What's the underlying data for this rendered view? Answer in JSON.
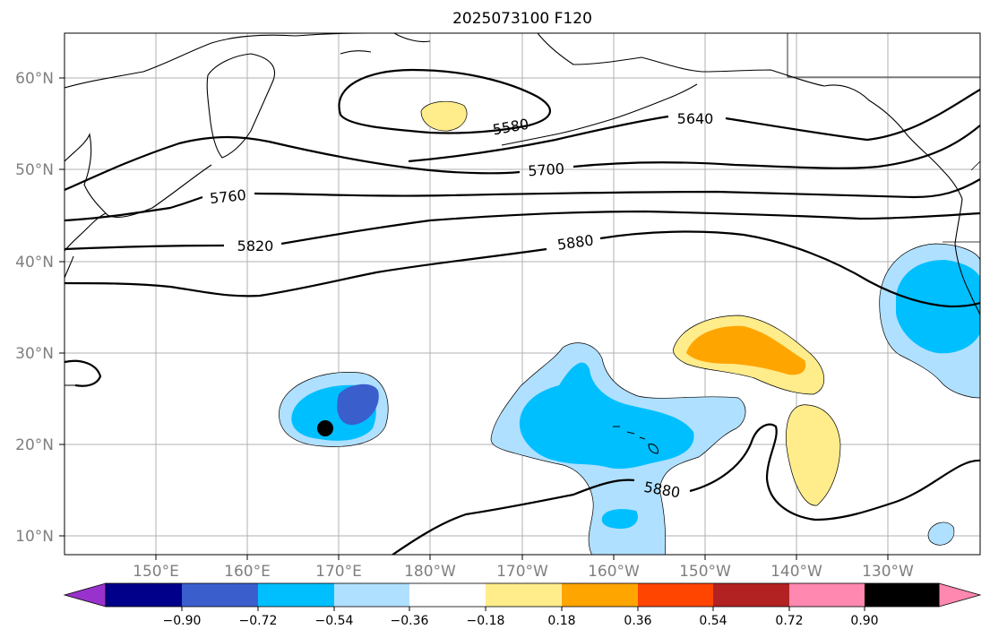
{
  "title": "2025073100 F120",
  "map": {
    "lat_ticks": [
      "60°N",
      "50°N",
      "40°N",
      "30°N",
      "20°N",
      "10°N"
    ],
    "lon_ticks": [
      "150°E",
      "160°E",
      "170°E",
      "180°W",
      "170°W",
      "160°W",
      "150°W",
      "140°W",
      "130°W"
    ],
    "contour_labels": [
      "5580",
      "5640",
      "5700",
      "5760",
      "5820",
      "5880",
      "5880"
    ],
    "marker": "storm-center-dot"
  },
  "colorbar": {
    "ticks": [
      "−0.90",
      "−0.72",
      "−0.54",
      "−0.36",
      "−0.18",
      "0.18",
      "0.36",
      "0.54",
      "0.72",
      "0.90"
    ],
    "colors": [
      "#9932cc",
      "#00008b",
      "#3a5fcd",
      "#00bfff",
      "#b0e0ff",
      "#ffffff",
      "#ffec8b",
      "#ffa500",
      "#ff4500",
      "#b22222",
      "#ff88b0"
    ]
  },
  "shading_colors": {
    "neg_018": "#b0e0ff",
    "neg_036": "#00bfff",
    "neg_054": "#3a5fcd",
    "pos_018": "#ffec8b",
    "pos_036": "#ffa500"
  }
}
